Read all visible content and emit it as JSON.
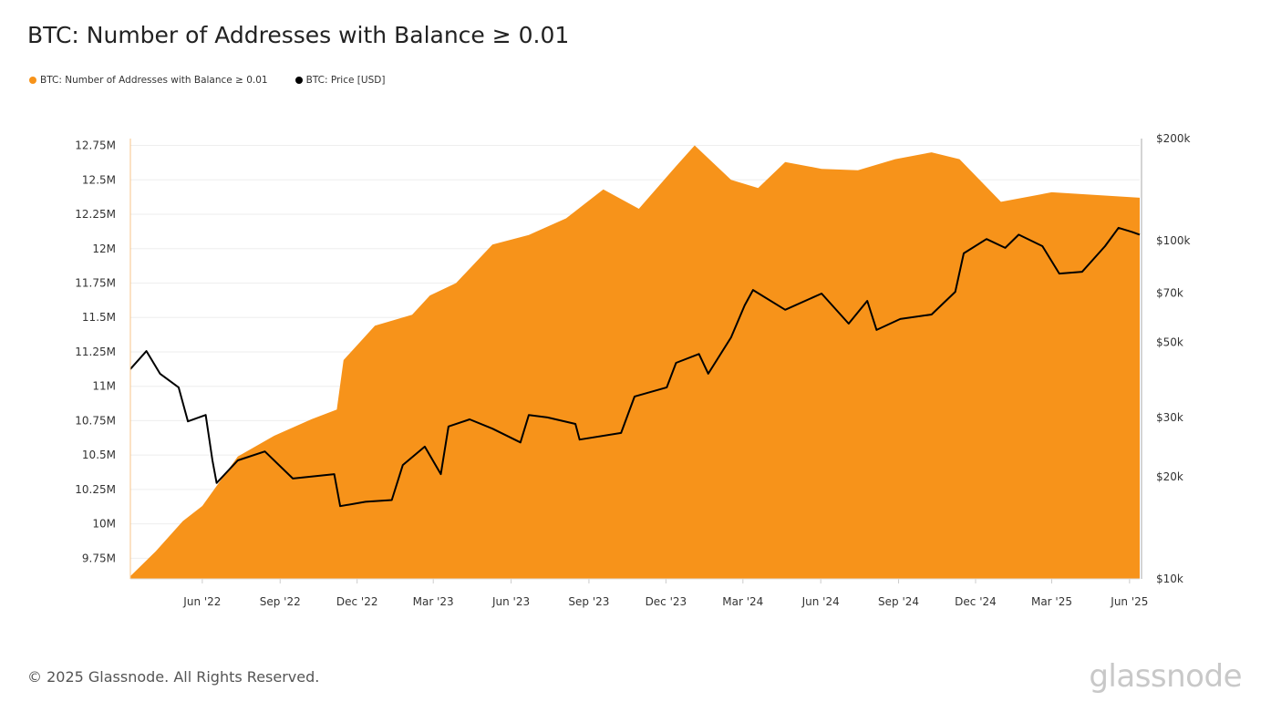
{
  "title": "BTC: Number of Addresses with Balance ≥ 0.01",
  "footer": "© 2025 Glassnode. All Rights Reserved.",
  "brand": "glassnode",
  "chart_data": {
    "type": "area",
    "title": "BTC: Number of Addresses with Balance ≥ 0.01",
    "legend_position": "top-left",
    "grid": true,
    "x_ticks": [
      {
        "date": "2022-06-01",
        "label": "Jun '22"
      },
      {
        "date": "2022-09-01",
        "label": "Sep '22"
      },
      {
        "date": "2022-12-01",
        "label": "Dec '22"
      },
      {
        "date": "2023-03-01",
        "label": "Mar '23"
      },
      {
        "date": "2023-06-01",
        "label": "Jun '23"
      },
      {
        "date": "2023-09-01",
        "label": "Sep '23"
      },
      {
        "date": "2023-12-01",
        "label": "Dec '23"
      },
      {
        "date": "2024-03-01",
        "label": "Mar '24"
      },
      {
        "date": "2024-06-01",
        "label": "Jun '24"
      },
      {
        "date": "2024-09-01",
        "label": "Sep '24"
      },
      {
        "date": "2024-12-01",
        "label": "Dec '24"
      },
      {
        "date": "2025-03-01",
        "label": "Mar '25"
      },
      {
        "date": "2025-06-01",
        "label": "Jun '25"
      }
    ],
    "xlim": [
      "2022-03-08",
      "2025-06-13"
    ],
    "left_axis": {
      "ylim": [
        9.6,
        12.8
      ],
      "unit": "M",
      "ticks": [
        {
          "value": 9.75,
          "label": "9.75M"
        },
        {
          "value": 10,
          "label": "10M"
        },
        {
          "value": 10.25,
          "label": "10.25M"
        },
        {
          "value": 10.5,
          "label": "10.5M"
        },
        {
          "value": 10.75,
          "label": "10.75M"
        },
        {
          "value": 11,
          "label": "11M"
        },
        {
          "value": 11.25,
          "label": "11.25M"
        },
        {
          "value": 11.5,
          "label": "11.5M"
        },
        {
          "value": 11.75,
          "label": "11.75M"
        },
        {
          "value": 12,
          "label": "12M"
        },
        {
          "value": 12.25,
          "label": "12.25M"
        },
        {
          "value": 12.5,
          "label": "12.5M"
        },
        {
          "value": 12.75,
          "label": "12.75M"
        }
      ]
    },
    "right_axis": {
      "scale": "log",
      "ylim": [
        10000,
        200000
      ],
      "ticks": [
        {
          "value": 10000,
          "label": "$10k"
        },
        {
          "value": 20000,
          "label": "$20k"
        },
        {
          "value": 30000,
          "label": "$30k"
        },
        {
          "value": 50000,
          "label": "$50k"
        },
        {
          "value": 70000,
          "label": "$70k"
        },
        {
          "value": 100000,
          "label": "$100k"
        },
        {
          "value": 200000,
          "label": "$200k"
        }
      ]
    },
    "series": [
      {
        "name": "BTC: Number of Addresses with Balance ≥ 0.01",
        "type": "area",
        "axis": "left",
        "color": "#f7931a",
        "unit": "millions",
        "points": [
          [
            "2022-03-08",
            9.62
          ],
          [
            "2022-04-07",
            9.8
          ],
          [
            "2022-05-09",
            10.02
          ],
          [
            "2022-06-01",
            10.13
          ],
          [
            "2022-07-13",
            10.49
          ],
          [
            "2022-08-25",
            10.64
          ],
          [
            "2022-10-08",
            10.76
          ],
          [
            "2022-11-07",
            10.83
          ],
          [
            "2022-11-15",
            11.19
          ],
          [
            "2022-12-22",
            11.44
          ],
          [
            "2023-02-04",
            11.52
          ],
          [
            "2023-02-25",
            11.66
          ],
          [
            "2023-03-28",
            11.75
          ],
          [
            "2023-05-10",
            12.03
          ],
          [
            "2023-06-22",
            12.1
          ],
          [
            "2023-08-05",
            12.22
          ],
          [
            "2023-09-18",
            12.43
          ],
          [
            "2023-10-30",
            12.29
          ],
          [
            "2023-12-13",
            12.6
          ],
          [
            "2024-01-04",
            12.75
          ],
          [
            "2024-02-16",
            12.5
          ],
          [
            "2024-03-19",
            12.44
          ],
          [
            "2024-04-20",
            12.63
          ],
          [
            "2024-06-02",
            12.58
          ],
          [
            "2024-07-15",
            12.57
          ],
          [
            "2024-08-28",
            12.65
          ],
          [
            "2024-10-10",
            12.7
          ],
          [
            "2024-11-12",
            12.65
          ],
          [
            "2024-12-31",
            12.34
          ],
          [
            "2025-03-01",
            12.41
          ],
          [
            "2025-04-22",
            12.39
          ],
          [
            "2025-06-13",
            12.37
          ]
        ]
      },
      {
        "name": "BTC: Price [USD]",
        "type": "line",
        "axis": "right",
        "color": "#000000",
        "points": [
          [
            "2022-03-08",
            41700
          ],
          [
            "2022-03-27",
            47100
          ],
          [
            "2022-04-12",
            40400
          ],
          [
            "2022-05-04",
            36800
          ],
          [
            "2022-05-15",
            29200
          ],
          [
            "2022-06-05",
            30500
          ],
          [
            "2022-06-13",
            22400
          ],
          [
            "2022-06-18",
            19200
          ],
          [
            "2022-07-13",
            22400
          ],
          [
            "2022-08-14",
            23800
          ],
          [
            "2022-09-16",
            19800
          ],
          [
            "2022-11-04",
            20400
          ],
          [
            "2022-11-11",
            16400
          ],
          [
            "2022-12-11",
            16900
          ],
          [
            "2023-01-11",
            17100
          ],
          [
            "2023-01-24",
            21700
          ],
          [
            "2023-02-19",
            24600
          ],
          [
            "2023-03-10",
            20400
          ],
          [
            "2023-03-19",
            28200
          ],
          [
            "2023-04-13",
            29600
          ],
          [
            "2023-05-10",
            27800
          ],
          [
            "2023-06-12",
            25300
          ],
          [
            "2023-06-22",
            30500
          ],
          [
            "2023-07-14",
            30000
          ],
          [
            "2023-08-16",
            28700
          ],
          [
            "2023-08-21",
            25800
          ],
          [
            "2023-10-09",
            27000
          ],
          [
            "2023-10-25",
            34600
          ],
          [
            "2023-12-02",
            36800
          ],
          [
            "2023-12-13",
            43500
          ],
          [
            "2024-01-09",
            46200
          ],
          [
            "2024-01-20",
            40400
          ],
          [
            "2024-02-16",
            51700
          ],
          [
            "2024-03-03",
            64300
          ],
          [
            "2024-03-13",
            71400
          ],
          [
            "2024-04-20",
            62400
          ],
          [
            "2024-06-02",
            69700
          ],
          [
            "2024-07-04",
            56800
          ],
          [
            "2024-07-26",
            66300
          ],
          [
            "2024-08-06",
            54400
          ],
          [
            "2024-09-03",
            58600
          ],
          [
            "2024-10-10",
            60400
          ],
          [
            "2024-11-07",
            70500
          ],
          [
            "2024-11-17",
            91600
          ],
          [
            "2024-12-14",
            101000
          ],
          [
            "2025-01-05",
            95100
          ],
          [
            "2025-01-21",
            104000
          ],
          [
            "2025-02-18",
            96200
          ],
          [
            "2025-03-10",
            79800
          ],
          [
            "2025-04-06",
            80800
          ],
          [
            "2025-05-03",
            96200
          ],
          [
            "2025-05-19",
            109000
          ],
          [
            "2025-06-04",
            106000
          ],
          [
            "2025-06-13",
            104000
          ]
        ]
      }
    ]
  }
}
